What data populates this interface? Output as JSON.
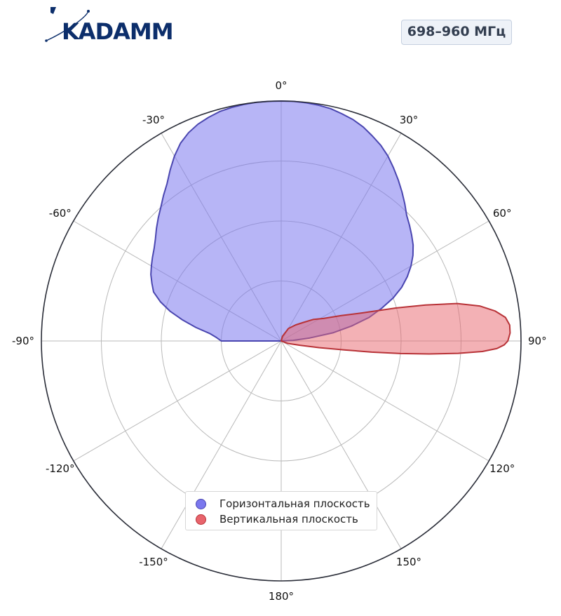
{
  "brand": {
    "logo_text": "KADAMM",
    "color": "#0c2e6b"
  },
  "badge": {
    "text": "698–960 МГц"
  },
  "chart_data": {
    "type": "polar-area",
    "theta_unit": "degrees",
    "theta_zero": "top",
    "theta_direction": "clockwise",
    "angular_ticks": [
      "0°",
      "30°",
      "60°",
      "90°",
      "120°",
      "150°",
      "180°",
      "-150°",
      "-120°",
      "-90°",
      "-60°",
      "-30°"
    ],
    "angular_tick_values": [
      0,
      30,
      60,
      90,
      120,
      150,
      180,
      -150,
      -120,
      -90,
      -60,
      -30
    ],
    "radial_range": [
      0,
      1
    ],
    "radial_gridlines": [
      0.25,
      0.5,
      0.75
    ],
    "grid": true,
    "legend_position": "bottom-center",
    "series": [
      {
        "name": "Горизонтальная плоскость",
        "fill": "#7b78ee",
        "stroke": "#4a46b0",
        "fill_opacity": 0.55,
        "points": [
          [
            -90,
            0.25
          ],
          [
            -87,
            0.27
          ],
          [
            -84,
            0.3
          ],
          [
            -81,
            0.36
          ],
          [
            -78,
            0.42
          ],
          [
            -75,
            0.48
          ],
          [
            -72,
            0.53
          ],
          [
            -69,
            0.57
          ],
          [
            -66,
            0.59
          ],
          [
            -63,
            0.61
          ],
          [
            -60,
            0.625
          ],
          [
            -57,
            0.64
          ],
          [
            -54,
            0.655
          ],
          [
            -51,
            0.675
          ],
          [
            -48,
            0.7
          ],
          [
            -45,
            0.725
          ],
          [
            -42,
            0.75
          ],
          [
            -39,
            0.78
          ],
          [
            -36,
            0.81
          ],
          [
            -33,
            0.85
          ],
          [
            -30,
            0.89
          ],
          [
            -27,
            0.925
          ],
          [
            -24,
            0.95
          ],
          [
            -21,
            0.968
          ],
          [
            -18,
            0.98
          ],
          [
            -15,
            0.99
          ],
          [
            -12,
            0.995
          ],
          [
            -9,
            0.998
          ],
          [
            -6,
            1.0
          ],
          [
            -3,
            1.0
          ],
          [
            0,
            1.0
          ],
          [
            3,
            1.0
          ],
          [
            6,
            0.998
          ],
          [
            9,
            0.995
          ],
          [
            12,
            0.99
          ],
          [
            15,
            0.98
          ],
          [
            18,
            0.97
          ],
          [
            21,
            0.955
          ],
          [
            24,
            0.935
          ],
          [
            27,
            0.915
          ],
          [
            30,
            0.89
          ],
          [
            33,
            0.86
          ],
          [
            36,
            0.83
          ],
          [
            39,
            0.8
          ],
          [
            42,
            0.77
          ],
          [
            45,
            0.74
          ],
          [
            48,
            0.72
          ],
          [
            51,
            0.7
          ],
          [
            54,
            0.68
          ],
          [
            57,
            0.655
          ],
          [
            60,
            0.625
          ],
          [
            63,
            0.59
          ],
          [
            66,
            0.55
          ],
          [
            69,
            0.5
          ],
          [
            72,
            0.44
          ],
          [
            75,
            0.38
          ],
          [
            78,
            0.3
          ],
          [
            81,
            0.22
          ],
          [
            84,
            0.12
          ],
          [
            87,
            0.05
          ],
          [
            90,
            0.0
          ]
        ]
      },
      {
        "name": "Вертикальная плоскость",
        "fill": "#e8646c",
        "stroke": "#b83237",
        "fill_opacity": 0.5,
        "points": [
          [
            0,
            0.0
          ],
          [
            15,
            0.02
          ],
          [
            30,
            0.06
          ],
          [
            42,
            0.09
          ],
          [
            50,
            0.12
          ],
          [
            56,
            0.16
          ],
          [
            62,
            0.2
          ],
          [
            67,
            0.27
          ],
          [
            71,
            0.36
          ],
          [
            74,
            0.5
          ],
          [
            76,
            0.62
          ],
          [
            78,
            0.75
          ],
          [
            80,
            0.84
          ],
          [
            82,
            0.9
          ],
          [
            84,
            0.94
          ],
          [
            86,
            0.955
          ],
          [
            88,
            0.955
          ],
          [
            90,
            0.945
          ],
          [
            91,
            0.93
          ],
          [
            92,
            0.9
          ],
          [
            93,
            0.84
          ],
          [
            94,
            0.74
          ],
          [
            95,
            0.62
          ],
          [
            96,
            0.5
          ],
          [
            97,
            0.38
          ],
          [
            98,
            0.27
          ],
          [
            100,
            0.16
          ],
          [
            103,
            0.08
          ],
          [
            110,
            0.03
          ],
          [
            130,
            0.0
          ]
        ]
      }
    ]
  }
}
